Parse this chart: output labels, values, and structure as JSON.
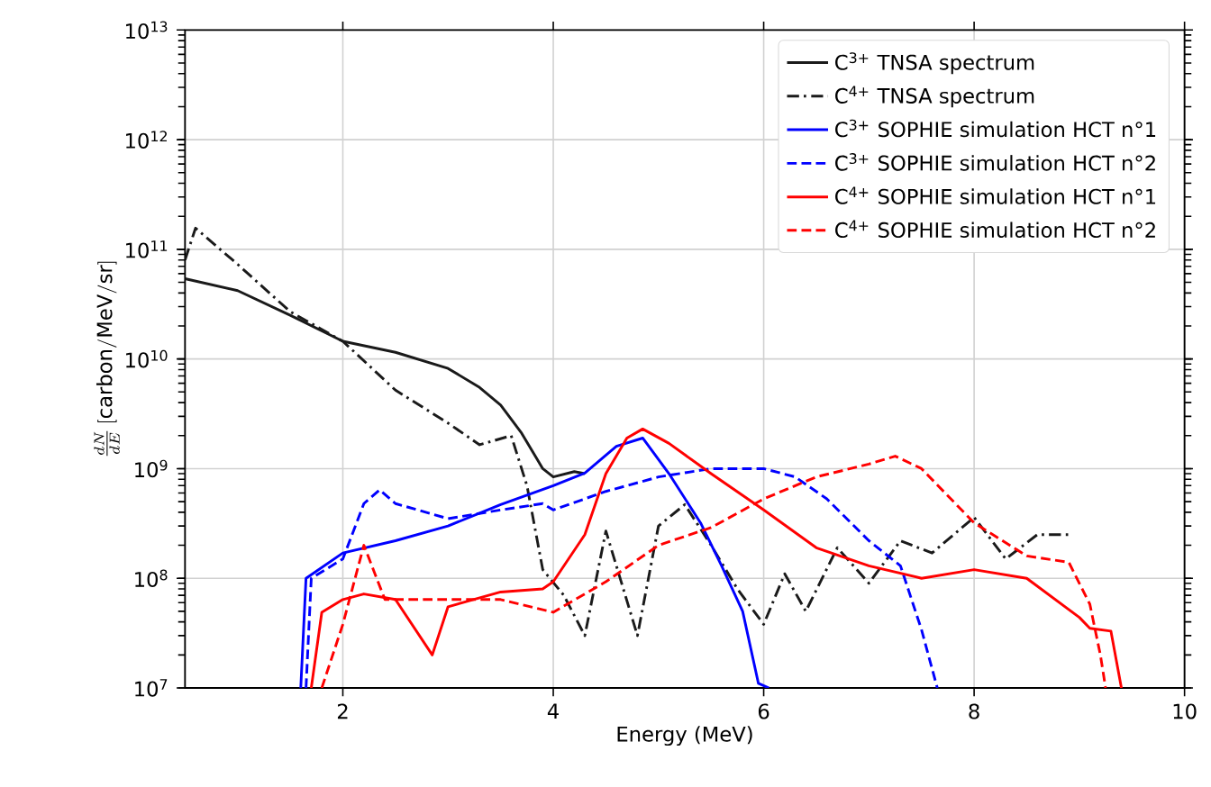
{
  "chart_data": {
    "type": "line",
    "xlabel": "Energy (MeV)",
    "ylabel": "\\frac{dN}{dE}\\,[\\mathrm{carbon/MeV/sr}]",
    "xlim": [
      0.5,
      10
    ],
    "xticks": [
      2,
      4,
      6,
      8,
      10
    ],
    "ylim": [
      10000000.0,
      10000000000000.0
    ],
    "yticks": [
      {
        "value": 10000000.0,
        "label": "10$^{7}$"
      },
      {
        "value": 100000000.0,
        "label": "10$^{8}$"
      },
      {
        "value": 1000000000.0,
        "label": "10$^{9}$"
      },
      {
        "value": 10000000000.0,
        "label": "10$^{10}$"
      },
      {
        "value": 100000000000.0,
        "label": "10$^{11}$"
      },
      {
        "value": 1000000000000.0,
        "label": "10$^{12}$"
      },
      {
        "value": 10000000000000.0,
        "label": "10$^{13}$"
      }
    ],
    "log": "y",
    "grid": true,
    "legend": "top right",
    "marker": "none",
    "series": [
      {
        "name": "C$^{3+}$ TNSA spectrum",
        "color": "#1a1a1a",
        "line_style": "solid",
        "x": [
          0.5,
          1,
          1.5,
          2,
          2.5,
          3,
          3.3,
          3.5,
          3.7,
          3.9,
          4.0,
          4.2,
          4.3
        ],
        "values": [
          54000000000.0,
          42000000000.0,
          25000000000.0,
          14500000000.0,
          11500000000.0,
          8200000000.0,
          5500000000.0,
          3800000000.0,
          2100000000.0,
          1000000000.0,
          840000000.0,
          940000000.0,
          900000000.0
        ]
      },
      {
        "name": "C$^{4+}$ TNSA spectrum",
        "color": "#1a1a1a",
        "line_style": "dashdot",
        "x": [
          0.5,
          0.6,
          1,
          1.5,
          2,
          2.5,
          3,
          3.3,
          3.6,
          3.75,
          3.9,
          4.1,
          4.3,
          4.5,
          4.8,
          5.0,
          5.25,
          5.5,
          5.75,
          6.0,
          6.2,
          6.4,
          6.7,
          7.0,
          7.3,
          7.6,
          8.0,
          8.3,
          8.6,
          8.9
        ],
        "values": [
          80000000000.0,
          156000000000.0,
          73000000000.0,
          27000000000.0,
          14500000000.0,
          5200000000.0,
          2600000000.0,
          1650000000.0,
          2000000000.0,
          700000000.0,
          120000000.0,
          70000000.0,
          30000000.0,
          270000000.0,
          30000000.0,
          300000000.0,
          470000000.0,
          200000000.0,
          80000000.0,
          38000000.0,
          110000000.0,
          50000000.0,
          190000000.0,
          90000000.0,
          220000000.0,
          170000000.0,
          360000000.0,
          150000000.0,
          250000000.0,
          250000000.0
        ]
      },
      {
        "name": "C$^{3+}$ SOPHIE simulation HCT n°1",
        "color": "#0000ff",
        "line_style": "solid",
        "x": [
          1.6,
          1.65,
          2,
          2.5,
          3,
          3.5,
          4,
          4.3,
          4.6,
          4.85,
          5.1,
          5.4,
          5.6,
          5.8,
          5.95,
          6.05
        ],
        "values": [
          10000000.0,
          100000000.0,
          170000000.0,
          220000000.0,
          300000000.0,
          470000000.0,
          700000000.0,
          910000000.0,
          1600000000.0,
          1900000000.0,
          900000000.0,
          320000000.0,
          130000000.0,
          50000000.0,
          11000000.0,
          10000000.0
        ]
      },
      {
        "name": "C$^{3+}$ SOPHIE simulation HCT n°2",
        "color": "#0000ff",
        "line_style": "dashed",
        "x": [
          1.65,
          1.7,
          2,
          2.2,
          2.35,
          2.5,
          3,
          3.5,
          3.9,
          4,
          4.5,
          5,
          5.5,
          6,
          6.3,
          6.6,
          7,
          7.3,
          7.5,
          7.65
        ],
        "values": [
          10000000.0,
          100000000.0,
          150000000.0,
          480000000.0,
          640000000.0,
          480000000.0,
          350000000.0,
          420000000.0,
          480000000.0,
          420000000.0,
          620000000.0,
          840000000.0,
          1000000000.0,
          1000000000.0,
          840000000.0,
          530000000.0,
          220000000.0,
          130000000.0,
          34000000.0,
          10000000.0
        ]
      },
      {
        "name": "C$^{4+}$ SOPHIE simulation HCT n°1",
        "color": "#ff0000",
        "line_style": "solid",
        "x": [
          1.7,
          1.8,
          2,
          2.2,
          2.5,
          2.85,
          3,
          3.5,
          3.9,
          4,
          4.3,
          4.5,
          4.7,
          4.85,
          5.1,
          5.5,
          6,
          6.5,
          7,
          7.5,
          8,
          8.5,
          9,
          9.1,
          9.3,
          9.4
        ],
        "values": [
          10000000.0,
          49000000.0,
          64000000.0,
          72000000.0,
          64000000.0,
          20000000.0,
          55000000.0,
          75000000.0,
          80000000.0,
          93000000.0,
          250000000.0,
          900000000.0,
          1900000000.0,
          2300000000.0,
          1700000000.0,
          900000000.0,
          420000000.0,
          190000000.0,
          130000000.0,
          100000000.0,
          120000000.0,
          100000000.0,
          44000000.0,
          35000000.0,
          33000000.0,
          10000000.0
        ]
      },
      {
        "name": "C$^{4+}$ SOPHIE simulation HCT n°2",
        "color": "#ff0000",
        "line_style": "dashed",
        "x": [
          1.8,
          2,
          2.2,
          2.4,
          3,
          3.5,
          4,
          4.5,
          5,
          5.5,
          6,
          6.5,
          7,
          7.25,
          7.5,
          8,
          8.5,
          8.9,
          9.1,
          9.2,
          9.25
        ],
        "values": [
          10000000.0,
          38000000.0,
          200000000.0,
          64000000.0,
          64000000.0,
          64000000.0,
          49000000.0,
          93000000.0,
          200000000.0,
          290000000.0,
          530000000.0,
          840000000.0,
          1100000000.0,
          1300000000.0,
          1000000000.0,
          320000000.0,
          160000000.0,
          140000000.0,
          58000000.0,
          20000000.0,
          10000000.0
        ]
      }
    ]
  }
}
